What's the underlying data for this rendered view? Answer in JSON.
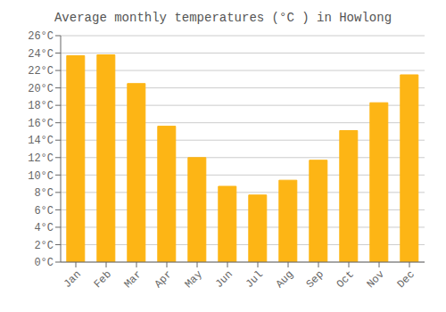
{
  "chart_data": {
    "type": "bar",
    "title": "Average monthly temperatures (°C ) in Howlong",
    "categories": [
      "Jan",
      "Feb",
      "Mar",
      "Apr",
      "May",
      "Jun",
      "Jul",
      "Aug",
      "Sep",
      "Oct",
      "Nov",
      "Dec"
    ],
    "values": [
      23.7,
      23.8,
      20.5,
      15.6,
      12.0,
      8.7,
      7.7,
      9.4,
      11.7,
      15.1,
      18.3,
      21.5
    ],
    "color": "#FDB515",
    "ylim": [
      0,
      26
    ],
    "yticks": [
      {
        "value": 0,
        "label": "0°C"
      },
      {
        "value": 2,
        "label": "2°C"
      },
      {
        "value": 4,
        "label": "4°C"
      },
      {
        "value": 6,
        "label": "6°C"
      },
      {
        "value": 8,
        "label": "8°C"
      },
      {
        "value": 10,
        "label": "10°C"
      },
      {
        "value": 12,
        "label": "12°C"
      },
      {
        "value": 14,
        "label": "14°C"
      },
      {
        "value": 16,
        "label": "16°C"
      },
      {
        "value": 18,
        "label": "18°C"
      },
      {
        "value": 20,
        "label": "20°C"
      },
      {
        "value": 22,
        "label": "22°C"
      },
      {
        "value": 24,
        "label": "24°C"
      },
      {
        "value": 26,
        "label": "26°C"
      }
    ],
    "grid": true
  }
}
